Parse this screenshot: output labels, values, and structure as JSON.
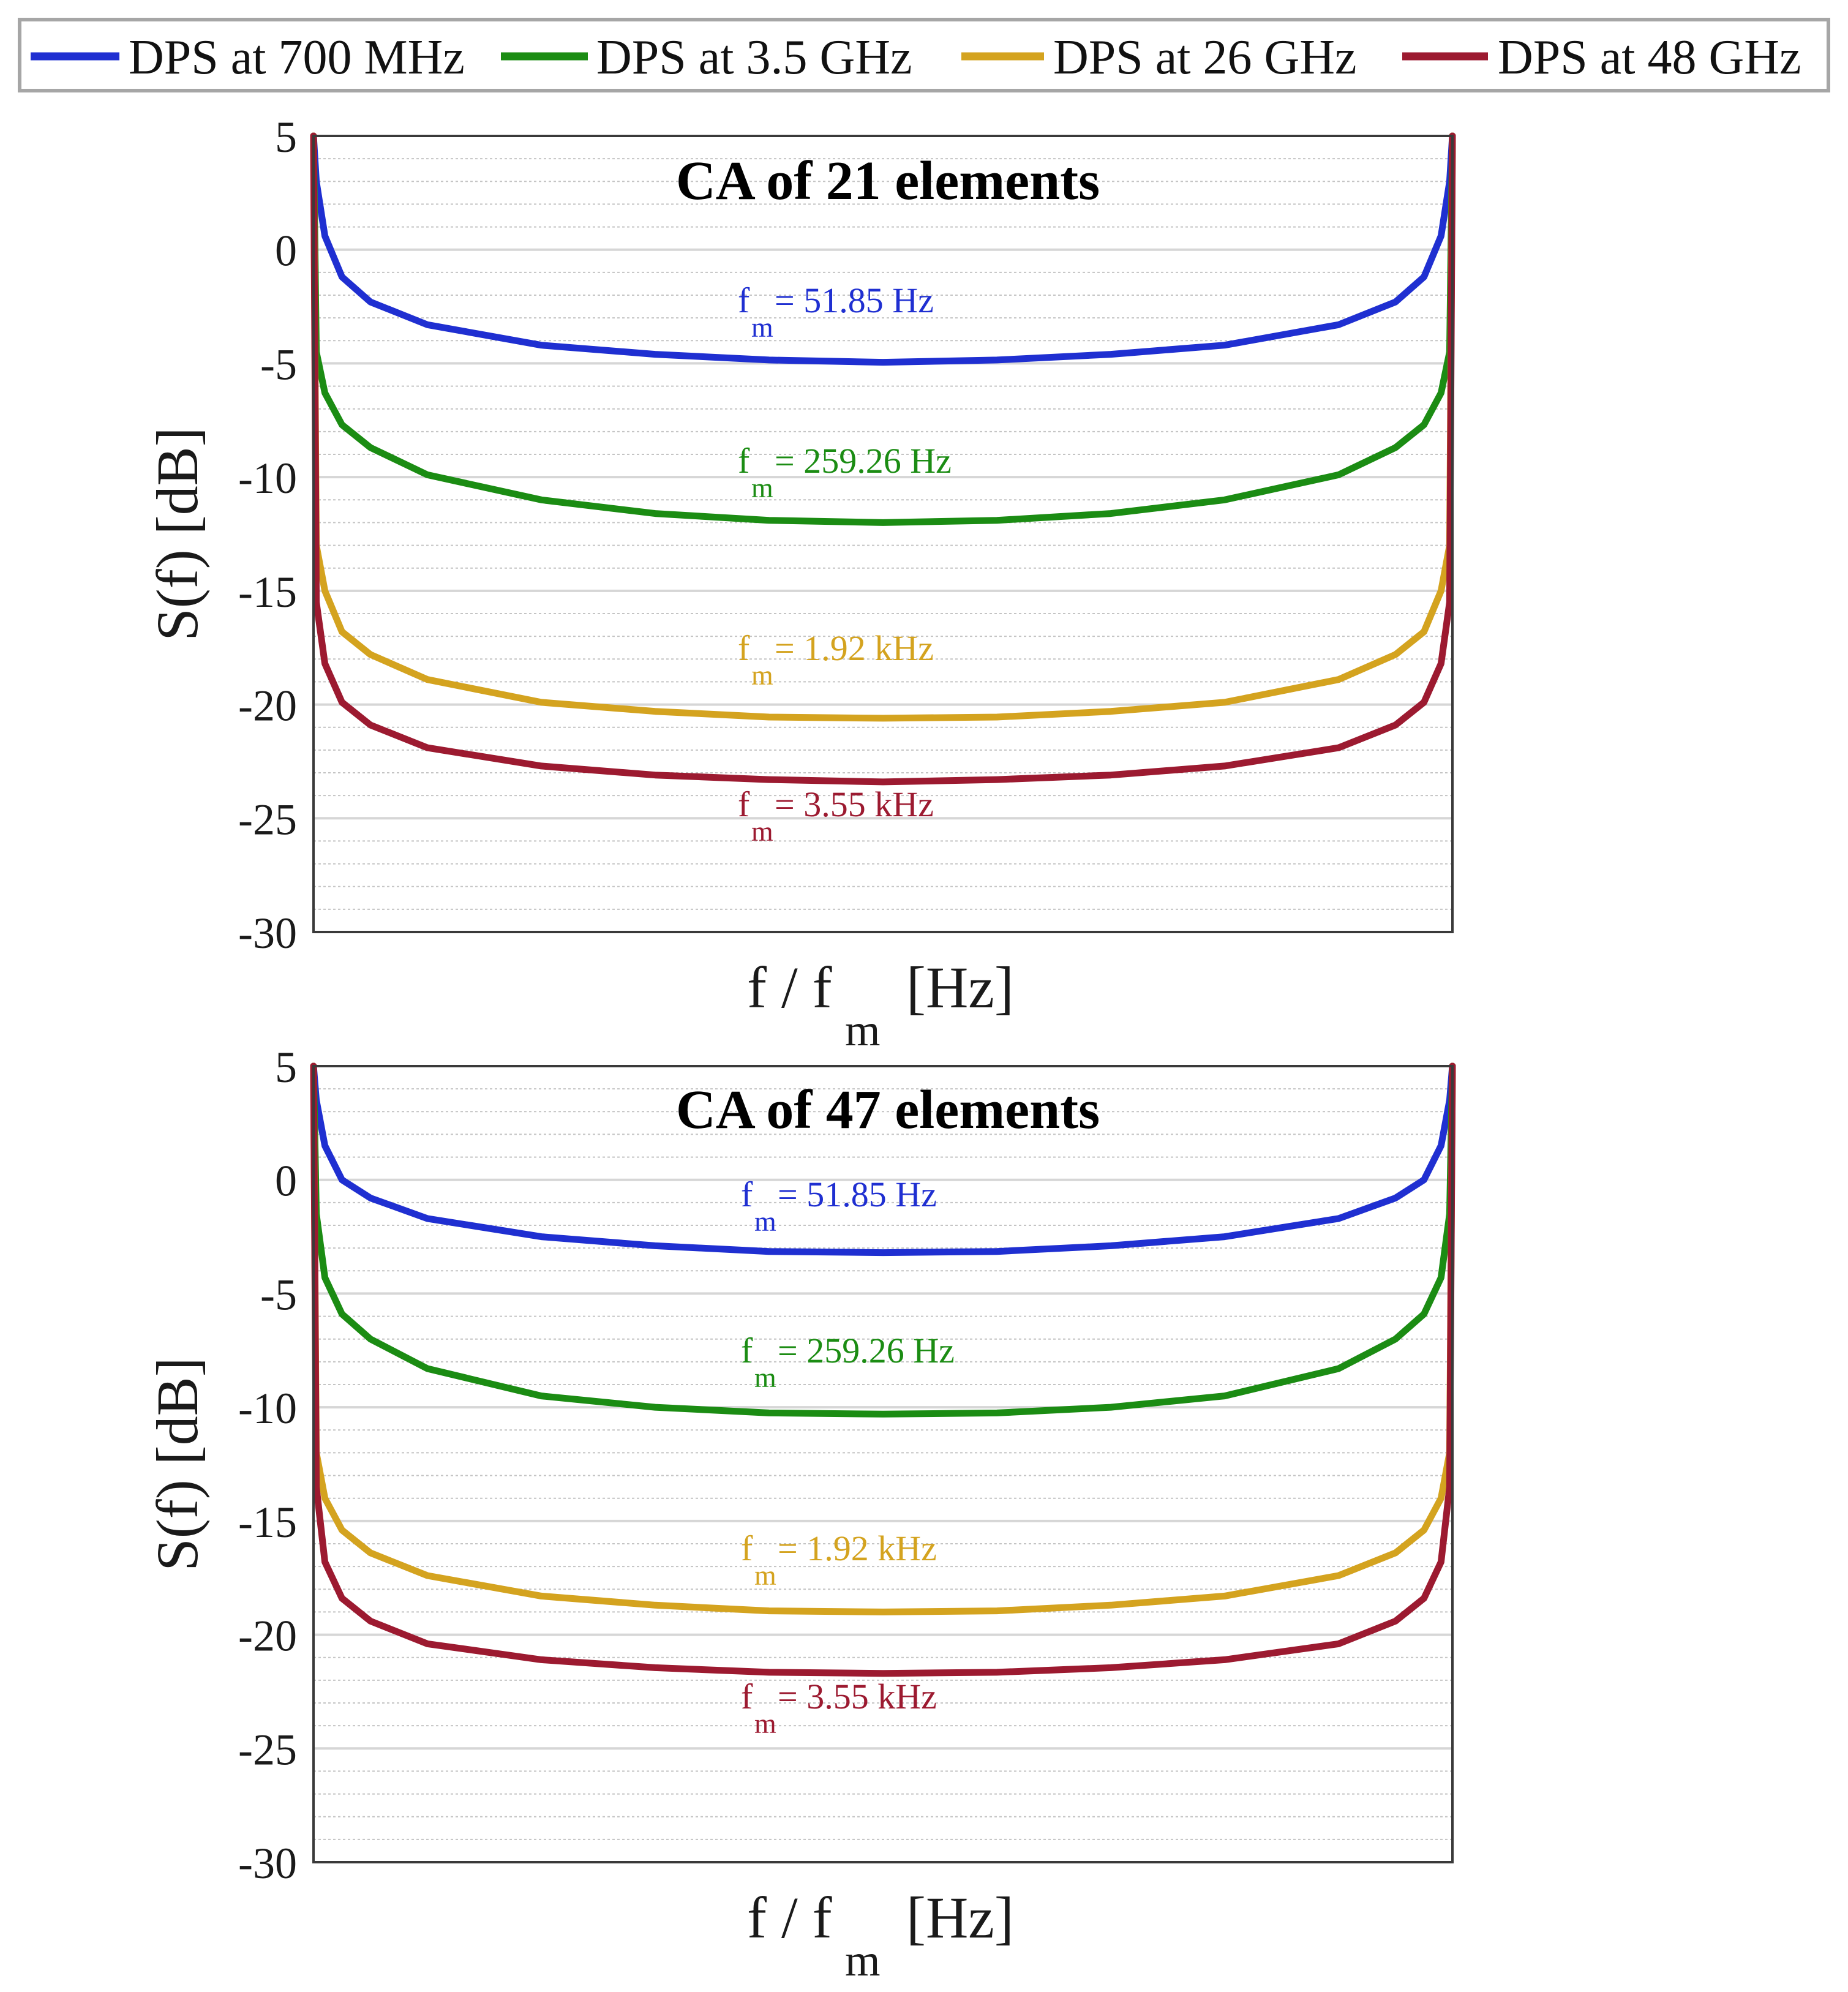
{
  "legend": [
    {
      "label": "DPS at 700 MHz",
      "color": "#1f2fd1"
    },
    {
      "label": "DPS at 3.5 GHz",
      "color": "#1b8c13"
    },
    {
      "label": "DPS at 26 GHz",
      "color": "#d4a31f"
    },
    {
      "label": "DPS at 48 GHz",
      "color": "#9c1a30"
    }
  ],
  "chart_data": [
    {
      "type": "line",
      "title": "CA of 21 elements",
      "xlabel": {
        "main": "f / f",
        "sub": "m",
        "unit": "[Hz]"
      },
      "ylabel": "S(f) [dB]",
      "xlim": [
        -1,
        1
      ],
      "ylim": [
        -30,
        5
      ],
      "yticks": [
        "5",
        "0",
        "-5",
        "-10",
        "-15",
        "-20",
        "-25",
        "-30"
      ],
      "grid": true,
      "series": [
        {
          "name": "DPS at 700 MHz",
          "color": "#1f2fd1",
          "x": [
            -1.0,
            -0.995,
            -0.98,
            -0.95,
            -0.9,
            -0.8,
            -0.6,
            -0.4,
            -0.2,
            0.0,
            0.2,
            0.4,
            0.6,
            0.8,
            0.9,
            0.95,
            0.98,
            0.995,
            1.0
          ],
          "y": [
            5,
            3.0,
            0.6,
            -1.2,
            -2.3,
            -3.3,
            -4.2,
            -4.6,
            -4.85,
            -4.95,
            -4.85,
            -4.6,
            -4.2,
            -3.3,
            -2.3,
            -1.2,
            0.6,
            3.0,
            5
          ],
          "annotation": {
            "main": "f",
            "sub": "m",
            "text": " = 51.85 Hz"
          }
        },
        {
          "name": "DPS at 3.5 GHz",
          "color": "#1b8c13",
          "x": [
            -1.0,
            -0.995,
            -0.98,
            -0.95,
            -0.9,
            -0.8,
            -0.6,
            -0.4,
            -0.2,
            0.0,
            0.2,
            0.4,
            0.6,
            0.8,
            0.9,
            0.95,
            0.98,
            0.995,
            1.0
          ],
          "y": [
            5,
            -4.5,
            -6.3,
            -7.7,
            -8.7,
            -9.9,
            -11.0,
            -11.6,
            -11.9,
            -12.0,
            -11.9,
            -11.6,
            -11.0,
            -9.9,
            -8.7,
            -7.7,
            -6.3,
            -4.5,
            5
          ],
          "annotation": {
            "main": "f",
            "sub": "m",
            "text": " = 259.26 Hz"
          }
        },
        {
          "name": "DPS at 26 GHz",
          "color": "#d4a31f",
          "x": [
            -1.0,
            -0.995,
            -0.98,
            -0.95,
            -0.9,
            -0.8,
            -0.6,
            -0.4,
            -0.2,
            0.0,
            0.2,
            0.4,
            0.6,
            0.8,
            0.9,
            0.95,
            0.98,
            0.995,
            1.0
          ],
          "y": [
            5,
            -13.0,
            -15.0,
            -16.8,
            -17.8,
            -18.9,
            -19.9,
            -20.3,
            -20.55,
            -20.6,
            -20.55,
            -20.3,
            -19.9,
            -18.9,
            -17.8,
            -16.8,
            -15.0,
            -13.0,
            5
          ],
          "annotation": {
            "main": "f",
            "sub": "m",
            "text": " = 1.92 kHz"
          }
        },
        {
          "name": "DPS at 48 GHz",
          "color": "#9c1a30",
          "x": [
            -1.0,
            -0.995,
            -0.98,
            -0.95,
            -0.9,
            -0.8,
            -0.6,
            -0.4,
            -0.2,
            0.0,
            0.2,
            0.4,
            0.6,
            0.8,
            0.9,
            0.95,
            0.98,
            0.995,
            1.0
          ],
          "y": [
            5,
            -15.5,
            -18.2,
            -19.9,
            -20.9,
            -21.9,
            -22.7,
            -23.1,
            -23.3,
            -23.4,
            -23.3,
            -23.1,
            -22.7,
            -21.9,
            -20.9,
            -19.9,
            -18.2,
            -15.5,
            5
          ],
          "annotation": {
            "main": "f",
            "sub": "m",
            "text": " = 3.55 kHz"
          }
        }
      ]
    },
    {
      "type": "line",
      "title": "CA of 47 elements",
      "xlabel": {
        "main": "f / f",
        "sub": "m",
        "unit": "[Hz]"
      },
      "ylabel": "S(f) [dB]",
      "xlim": [
        -1,
        1
      ],
      "ylim": [
        -30,
        5
      ],
      "yticks": [
        "5",
        "0",
        "-5",
        "-10",
        "-15",
        "-20",
        "-25",
        "-30"
      ],
      "grid": true,
      "series": [
        {
          "name": "DPS at 700 MHz",
          "color": "#1f2fd1",
          "x": [
            -1.0,
            -0.995,
            -0.98,
            -0.95,
            -0.9,
            -0.8,
            -0.6,
            -0.4,
            -0.2,
            0.0,
            0.2,
            0.4,
            0.6,
            0.8,
            0.9,
            0.95,
            0.98,
            0.995,
            1.0
          ],
          "y": [
            5,
            3.5,
            1.5,
            0.0,
            -0.8,
            -1.7,
            -2.5,
            -2.9,
            -3.15,
            -3.2,
            -3.15,
            -2.9,
            -2.5,
            -1.7,
            -0.8,
            0.0,
            1.5,
            3.5,
            5
          ],
          "annotation": {
            "main": "f",
            "sub": "m",
            "text": " = 51.85 Hz"
          }
        },
        {
          "name": "DPS at 3.5 GHz",
          "color": "#1b8c13",
          "x": [
            -1.0,
            -0.995,
            -0.98,
            -0.95,
            -0.9,
            -0.8,
            -0.6,
            -0.4,
            -0.2,
            0.0,
            0.2,
            0.4,
            0.6,
            0.8,
            0.9,
            0.95,
            0.98,
            0.995,
            1.0
          ],
          "y": [
            5,
            -1.5,
            -4.3,
            -5.9,
            -7.0,
            -8.3,
            -9.5,
            -10.0,
            -10.25,
            -10.3,
            -10.25,
            -10.0,
            -9.5,
            -8.3,
            -7.0,
            -5.9,
            -4.3,
            -1.5,
            5
          ],
          "annotation": {
            "main": "f",
            "sub": "m",
            "text": " = 259.26 Hz"
          }
        },
        {
          "name": "DPS at 26 GHz",
          "color": "#d4a31f",
          "x": [
            -1.0,
            -0.995,
            -0.98,
            -0.95,
            -0.9,
            -0.8,
            -0.6,
            -0.4,
            -0.2,
            0.0,
            0.2,
            0.4,
            0.6,
            0.8,
            0.9,
            0.95,
            0.98,
            0.995,
            1.0
          ],
          "y": [
            5,
            -12.0,
            -14.0,
            -15.4,
            -16.4,
            -17.4,
            -18.3,
            -18.7,
            -18.95,
            -19.0,
            -18.95,
            -18.7,
            -18.3,
            -17.4,
            -16.4,
            -15.4,
            -14.0,
            -12.0,
            5
          ],
          "annotation": {
            "main": "f",
            "sub": "m",
            "text": " = 1.92 kHz"
          }
        },
        {
          "name": "DPS at 48 GHz",
          "color": "#9c1a30",
          "x": [
            -1.0,
            -0.995,
            -0.98,
            -0.95,
            -0.9,
            -0.8,
            -0.6,
            -0.4,
            -0.2,
            0.0,
            0.2,
            0.4,
            0.6,
            0.8,
            0.9,
            0.95,
            0.98,
            0.995,
            1.0
          ],
          "y": [
            5,
            -13.5,
            -16.8,
            -18.4,
            -19.4,
            -20.4,
            -21.1,
            -21.45,
            -21.65,
            -21.7,
            -21.65,
            -21.45,
            -21.1,
            -20.4,
            -19.4,
            -18.4,
            -16.8,
            -13.5,
            5
          ],
          "annotation": {
            "main": "f",
            "sub": "m",
            "text": " = 3.55 kHz"
          }
        }
      ]
    }
  ]
}
